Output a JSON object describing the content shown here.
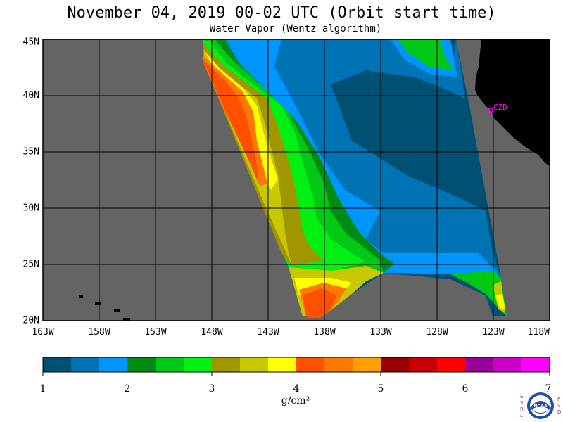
{
  "header": {
    "title": "November 04, 2019  00-02 UTC  (Orbit start time)",
    "subtitle": "Water Vapor (Wentz algorithm)"
  },
  "map": {
    "lat_range": [
      20,
      45
    ],
    "lon_range": [
      -163,
      -118
    ],
    "lat_labels": [
      "20N",
      "25N",
      "30N",
      "35N",
      "40N",
      "45N"
    ],
    "lon_labels": [
      "163W",
      "158W",
      "153W",
      "148W",
      "143W",
      "138W",
      "133W",
      "128W",
      "123W",
      "118W"
    ],
    "station_label": "CZD",
    "colors": {
      "background": "#646464",
      "land": "#000000",
      "station": "#ff00ff"
    }
  },
  "colorbar": {
    "tick_labels": [
      "1",
      "2",
      "3",
      "4",
      "5",
      "6",
      "7"
    ],
    "units": "g/cm²",
    "colors": [
      "#005073",
      "#0073b4",
      "#0096ff",
      "#008c14",
      "#00c814",
      "#00f014",
      "#a09600",
      "#c8c800",
      "#ffff00",
      "#ff5000",
      "#ff7800",
      "#ffa000",
      "#960000",
      "#c80000",
      "#ff0000",
      "#960096",
      "#c800c8",
      "#ff00ff"
    ]
  },
  "logo": {
    "left_letters": "ESRL",
    "right_letters": "PSD",
    "center": "NOAA"
  }
}
